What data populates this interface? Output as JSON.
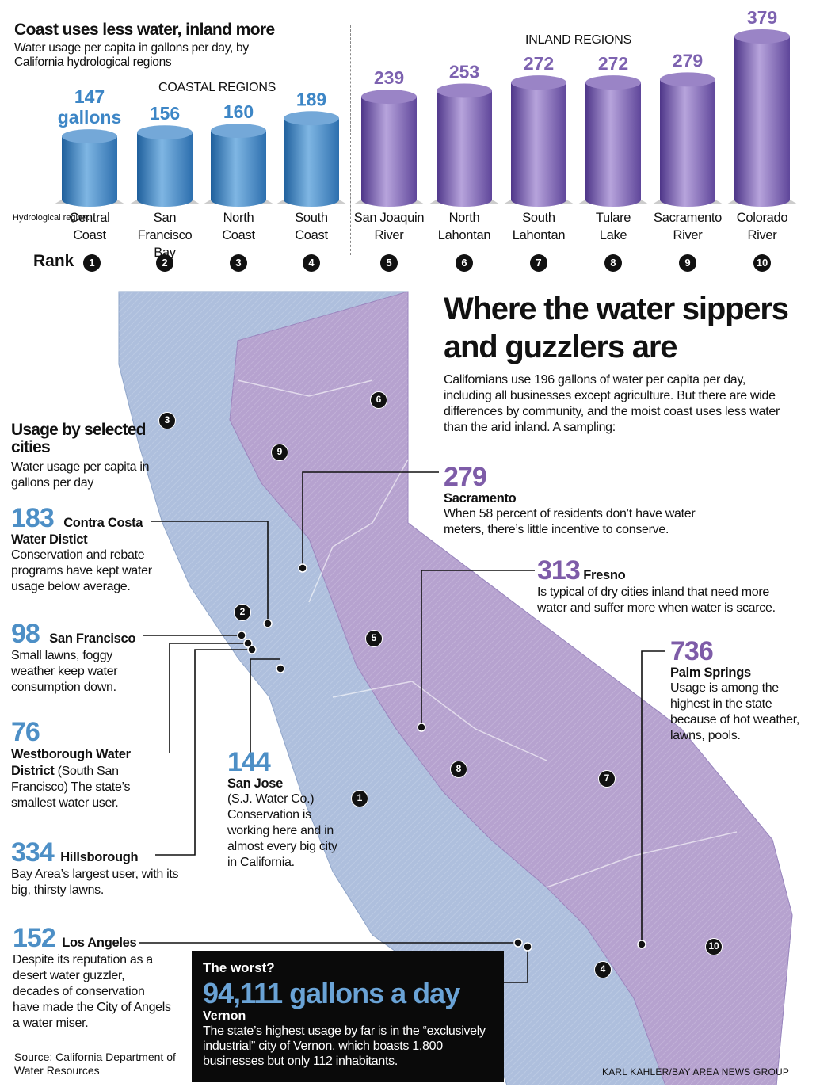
{
  "chart_data": {
    "type": "bar",
    "title": "Coast uses less water, inland more",
    "subtitle": "Water usage per capita in gallons per day, by California hydrological regions",
    "groups": [
      {
        "name": "COASTAL REGIONS",
        "categories": [
          "Central Coast",
          "San Francisco Bay",
          "North Coast",
          "South Coast"
        ]
      },
      {
        "name": "INLAND REGIONS",
        "categories": [
          "San Joaquin River",
          "North Lahontan",
          "South Lahontan",
          "Tulare Lake",
          "Sacramento River",
          "Colorado River"
        ]
      }
    ],
    "categories": [
      "Central Coast",
      "San Francisco Bay",
      "North Coast",
      "South Coast",
      "San Joaquin River",
      "North Lahontan",
      "South Lahontan",
      "Tulare Lake",
      "Sacramento River",
      "Colorado River"
    ],
    "values": [
      147,
      156,
      160,
      189,
      239,
      253,
      272,
      272,
      279,
      379
    ],
    "value_labels": [
      "147 gallons",
      "156",
      "160",
      "189",
      "239",
      "253",
      "272",
      "272",
      "279",
      "379"
    ],
    "ranks": [
      "1",
      "2",
      "3",
      "4",
      "5",
      "6",
      "7",
      "8",
      "9",
      "10"
    ],
    "colors": {
      "coastal": "#3d86c6",
      "inland": "#7d62b0"
    }
  },
  "labels": {
    "coastal": "COASTAL REGIONS",
    "inland": "INLAND REGIONS",
    "hydro": "Hydrological region:",
    "rank": "Rank"
  },
  "regions_display": [
    [
      "Central",
      "Coast"
    ],
    [
      "San Francisco",
      "Bay"
    ],
    [
      "North",
      "Coast"
    ],
    [
      "South",
      "Coast"
    ],
    [
      "San Joaquin",
      "River"
    ],
    [
      "North",
      "Lahontan"
    ],
    [
      "South",
      "Lahontan"
    ],
    [
      "Tulare",
      "Lake"
    ],
    [
      "Sacramento",
      "River"
    ],
    [
      "Colorado",
      "River"
    ]
  ],
  "map": {
    "title": "Where the water sippers and guzzlers are",
    "intro": "Californians use 196 gallons of water per capita per day, including all businesses except agriculture. But there are wide differences by community, and the moist coast uses less water than the arid inland. A sampling:",
    "usage_title": "Usage by selected cities",
    "usage_sub": "Water usage per capita in gallons per day",
    "cities": {
      "contra_costa": {
        "num": "183",
        "name": "Contra Costa",
        "name2": "Water Distict",
        "desc": "Conservation and rebate programs have kept water usage below average."
      },
      "san_francisco": {
        "num": "98",
        "name": "San Francisco",
        "desc": "Small lawns, foggy weather keep water consumption down."
      },
      "westborough": {
        "num": "76",
        "name": "Westborough Water District",
        "paren": "(South San Francisco)",
        "desc": "The state’s smallest water user."
      },
      "hillsborough": {
        "num": "334",
        "name": "Hillsborough",
        "desc": "Bay Area’s largest user, with its big, thirsty lawns."
      },
      "los_angeles": {
        "num": "152",
        "name": "Los Angeles",
        "desc": "Despite its reputation as a desert water guzzler, decades of conservation have made the City of Angels a water miser."
      },
      "san_jose": {
        "num": "144",
        "name": "San Jose",
        "desc": "(S.J. Water Co.) Conservation is working here and in almost every big city in California."
      },
      "sacramento": {
        "num": "279",
        "name": "Sacramento",
        "desc": "When 58 percent of residents don’t have water meters, there’s little incentive to conserve."
      },
      "fresno": {
        "num": "313",
        "name": "Fresno",
        "desc": "Is typical of dry cities inland that need more water and suffer more when water is scarce."
      },
      "palm_springs": {
        "num": "736",
        "name": "Palm Springs",
        "desc": "Usage is among the highest in the state because of hot weather, lawns, pools."
      }
    },
    "worst": {
      "label": "The worst?",
      "num": "94,111 gallons a day",
      "city": "Vernon",
      "desc": "The state’s highest usage by far is in the “exclusively industrial” city of Vernon, which boasts 1,800 businesses but only 112 inhabitants."
    },
    "source": "Source: California Department of Water Resources",
    "credit": "KARL KAHLER/BAY AREA NEWS GROUP"
  }
}
